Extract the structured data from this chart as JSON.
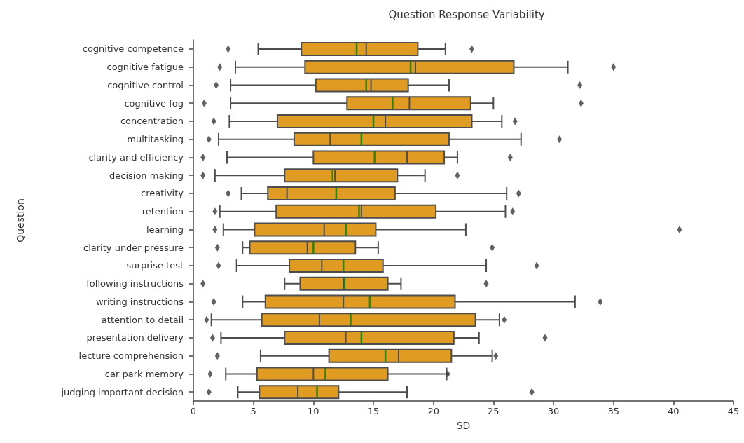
{
  "chart_data": {
    "type": "box",
    "title": "Question Response Variability",
    "xlabel": "SD",
    "ylabel": "Question",
    "orientation": "horizontal",
    "color": "#e09b22",
    "marker": "diamond",
    "grid": false,
    "categories": [
      "cognitive competence",
      "cognitive fatigue",
      "cognitive control",
      "cognitive fog",
      "concentration",
      "multitasking",
      "clarity and efficiency",
      "decision making",
      "creativity",
      "retention",
      "learning",
      "clarity under pressure",
      "surprise test",
      "following instructions",
      "writing instructions",
      "attention to detail",
      "presentation delivery",
      "lecture comprehension",
      "car park memory",
      "judging important decision"
    ],
    "xlim": [
      0,
      45
    ],
    "xticks": [
      0,
      5,
      10,
      15,
      20,
      25,
      30,
      35,
      40,
      45
    ],
    "boxes": [
      {
        "low": 5.4,
        "q1": 9.0,
        "median": 14.4,
        "q3": 18.7,
        "high": 21.0,
        "mean": 13.6,
        "outliers": [
          2.9,
          23.2
        ]
      },
      {
        "low": 3.5,
        "q1": 9.3,
        "median": 18.5,
        "q3": 26.7,
        "high": 31.2,
        "mean": 18.1,
        "outliers": [
          2.2,
          35.0
        ]
      },
      {
        "low": 3.1,
        "q1": 10.2,
        "median": 14.8,
        "q3": 17.9,
        "high": 21.3,
        "mean": 14.4,
        "outliers": [
          1.9,
          32.2
        ]
      },
      {
        "low": 3.1,
        "q1": 12.8,
        "median": 18.0,
        "q3": 23.1,
        "high": 25.0,
        "mean": 16.6,
        "outliers": [
          0.9,
          32.3
        ]
      },
      {
        "low": 3.0,
        "q1": 7.0,
        "median": 16.0,
        "q3": 23.2,
        "high": 25.7,
        "mean": 15.0,
        "outliers": [
          1.7,
          26.8
        ]
      },
      {
        "low": 2.1,
        "q1": 8.4,
        "median": 11.4,
        "q3": 21.3,
        "high": 27.3,
        "mean": 14.0,
        "outliers": [
          1.3,
          30.5
        ]
      },
      {
        "low": 2.8,
        "q1": 10.0,
        "median": 17.8,
        "q3": 20.9,
        "high": 22.0,
        "mean": 15.1,
        "outliers": [
          0.8,
          26.4
        ]
      },
      {
        "low": 1.8,
        "q1": 7.6,
        "median": 11.8,
        "q3": 17.0,
        "high": 19.3,
        "mean": 11.6,
        "outliers": [
          0.8,
          22.0
        ]
      },
      {
        "low": 4.0,
        "q1": 6.2,
        "median": 7.8,
        "q3": 16.8,
        "high": 26.1,
        "mean": 11.9,
        "outliers": [
          2.9,
          27.1
        ]
      },
      {
        "low": 2.2,
        "q1": 6.9,
        "median": 14.0,
        "q3": 20.2,
        "high": 26.0,
        "mean": 13.8,
        "outliers": [
          1.8,
          26.6
        ]
      },
      {
        "low": 2.5,
        "q1": 5.1,
        "median": 10.9,
        "q3": 15.2,
        "high": 22.7,
        "mean": 12.7,
        "outliers": [
          1.8,
          40.5
        ]
      },
      {
        "low": 4.1,
        "q1": 4.7,
        "median": 9.5,
        "q3": 13.5,
        "high": 15.4,
        "mean": 10.0,
        "outliers": [
          2.0,
          24.9
        ]
      },
      {
        "low": 3.6,
        "q1": 8.0,
        "median": 10.7,
        "q3": 15.8,
        "high": 24.4,
        "mean": 12.5,
        "outliers": [
          2.1,
          28.6
        ]
      },
      {
        "low": 7.6,
        "q1": 8.9,
        "median": 12.5,
        "q3": 16.2,
        "high": 17.3,
        "mean": 12.6,
        "outliers": [
          0.8,
          24.4
        ]
      },
      {
        "low": 4.1,
        "q1": 6.0,
        "median": 12.5,
        "q3": 21.8,
        "high": 31.8,
        "mean": 14.7,
        "outliers": [
          1.7,
          33.9
        ]
      },
      {
        "low": 1.5,
        "q1": 5.7,
        "median": 10.5,
        "q3": 23.5,
        "high": 25.5,
        "mean": 13.1,
        "outliers": [
          1.1,
          25.9
        ]
      },
      {
        "low": 2.3,
        "q1": 7.6,
        "median": 12.7,
        "q3": 21.7,
        "high": 23.8,
        "mean": 14.0,
        "outliers": [
          1.6,
          29.3
        ]
      },
      {
        "low": 5.6,
        "q1": 11.3,
        "median": 17.1,
        "q3": 21.5,
        "high": 24.9,
        "mean": 16.0,
        "outliers": [
          2.0,
          25.2
        ]
      },
      {
        "low": 2.7,
        "q1": 5.3,
        "median": 10.0,
        "q3": 16.2,
        "high": 21.1,
        "mean": 11.0,
        "outliers": [
          1.4,
          21.2
        ]
      },
      {
        "low": 3.7,
        "q1": 5.5,
        "median": 8.7,
        "q3": 12.1,
        "high": 17.8,
        "mean": 10.3,
        "outliers": [
          1.3,
          28.2
        ]
      }
    ]
  }
}
